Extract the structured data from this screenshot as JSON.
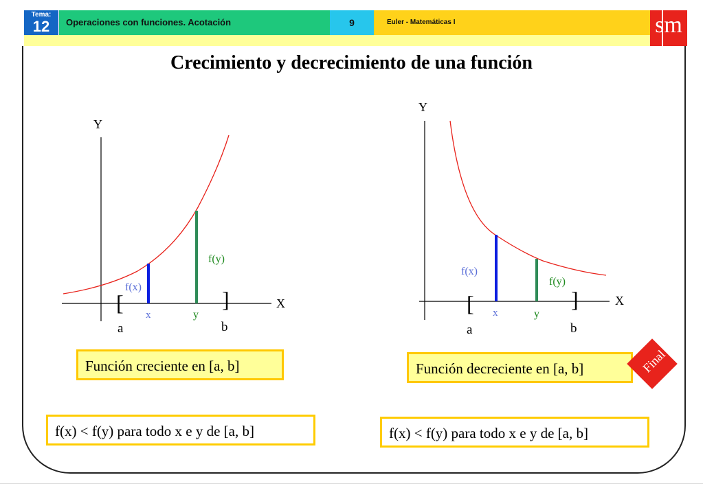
{
  "header": {
    "tema_label": "Tema:",
    "tema_number": "12",
    "title": "Operaciones con funciones. Acotación",
    "page_number": "9",
    "book": "Euler - Matemáticas I",
    "logo": "sm"
  },
  "main_title": "Crecimiento y decrecimiento de una función",
  "left_graph": {
    "y_axis_label": "Y",
    "x_axis_label": "X",
    "fx_label": "f(x)",
    "fy_label": "f(y)",
    "x_label": "x",
    "y_label": "y",
    "a_label": "a",
    "b_label": "b",
    "open_bracket": "[",
    "close_bracket": "]",
    "caption": "Función creciente en [a, b]",
    "condition": "f(x) < f(y) para todo x e y de [a, b]"
  },
  "right_graph": {
    "y_axis_label": "Y",
    "x_axis_label": "X",
    "fx_label": "f(x)",
    "fy_label": "f(y)",
    "x_label": "x",
    "y_label": "y",
    "a_label": "a",
    "b_label": "b",
    "open_bracket": "[",
    "close_bracket": "]",
    "caption": "Función decreciente en [a, b]",
    "condition": "f(x) < f(y) para todo x e y de [a, b]"
  },
  "final_button": "Final",
  "colors": {
    "curve": "#e8231c",
    "fx_bar": "#0a1ee0",
    "fy_bar": "#2e8b57",
    "fx_text": "#5b6fd8",
    "fy_text": "#1f8a1f",
    "box_fill": "#ffff99",
    "box_border": "#ffc800"
  }
}
